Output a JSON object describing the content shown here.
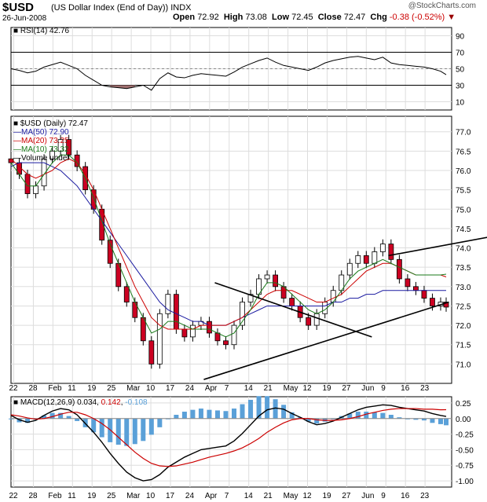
{
  "header": {
    "symbol": "$USD",
    "name": "(US Dollar Index (End of Day))",
    "exchange": "INDX",
    "date": "26-Jun-2008",
    "watermark": "@StockCharts.com",
    "open_label": "Open",
    "open": "72.92",
    "high_label": "High",
    "high": "73.08",
    "low_label": "Low",
    "low": "72.45",
    "close_label": "Close",
    "close": "72.47",
    "chg_label": "Chg",
    "chg": "-0.38 (-0.52%)"
  },
  "colors": {
    "ma50": "#1a1aa0",
    "ma20": "#cc0000",
    "ma10": "#1a7a1a",
    "up": "#ffffff",
    "down": "#cc0022",
    "macd_hist": "#5aa0d8",
    "rsi_fill": "#a07070"
  },
  "x_labels": [
    "22",
    "28",
    "Feb",
    "11",
    "19",
    "25",
    "Mar",
    "10",
    "17",
    "24",
    "Apr",
    "7",
    "14",
    "21",
    "May",
    "12",
    "19",
    "27",
    "Jun",
    "9",
    "16",
    "23"
  ],
  "rsi": {
    "label": "RSI(14) 42.76",
    "ylim": [
      0,
      100
    ],
    "ticks": [
      "90",
      "70",
      "50",
      "30",
      "10"
    ],
    "overbought": 70,
    "oversold": 30
  },
  "main": {
    "legend": [
      {
        "text": "$USD (Daily) 72.47",
        "color": "#000000"
      },
      {
        "text": "MA(50) 72.90",
        "color": "#1a1aa0"
      },
      {
        "text": "MA(20) 73.25",
        "color": "#cc0000"
      },
      {
        "text": "MA(10) 73.32",
        "color": "#1a7a1a"
      },
      {
        "text": "Volume undef",
        "color": "#000000"
      }
    ],
    "ylim": [
      70.5,
      77.4
    ],
    "ticks": [
      "77.0",
      "76.5",
      "76.0",
      "75.5",
      "75.0",
      "74.5",
      "74.0",
      "73.5",
      "73.0",
      "72.5",
      "72.0",
      "71.5",
      "71.0"
    ]
  },
  "macd": {
    "label_prefix": "MACD(12,26,9)",
    "val1": "0.034",
    "val2": "0.142",
    "val3": "-0.108",
    "ylim": [
      -1.1,
      0.35
    ],
    "ticks": [
      "0.25",
      "0.00",
      "-0.25",
      "-0.50",
      "-0.75",
      "-1.00"
    ]
  },
  "chart_data": {
    "type": "line",
    "title": "$USD (US Dollar Index (End of Day))",
    "x": [
      0,
      3,
      6,
      9,
      12,
      15,
      18,
      21,
      24,
      27,
      30,
      33,
      36,
      39,
      42,
      45,
      48,
      51,
      54,
      57,
      60,
      63,
      66,
      69,
      72,
      75,
      78,
      81,
      84,
      87,
      90,
      93,
      96,
      99,
      102,
      105,
      108,
      111,
      114,
      117,
      120,
      123,
      126,
      129,
      132,
      135,
      138,
      141,
      144,
      147,
      150,
      153,
      156,
      158
    ],
    "series": [
      {
        "name": "$USD (Daily)",
        "values": [
          76.2,
          75.9,
          75.4,
          75.6,
          76.3,
          76.5,
          76.8,
          76.4,
          76.1,
          75.5,
          75.0,
          74.2,
          73.6,
          73.0,
          72.6,
          72.2,
          71.6,
          71.0,
          72.3,
          72.8,
          71.9,
          71.7,
          72.0,
          72.1,
          71.8,
          71.6,
          71.5,
          72.0,
          72.6,
          72.8,
          73.2,
          73.3,
          73.0,
          72.7,
          72.5,
          72.2,
          72.0,
          72.3,
          72.6,
          72.9,
          73.3,
          73.6,
          73.8,
          73.6,
          73.9,
          74.1,
          73.7,
          73.2,
          73.0,
          72.9,
          72.7,
          72.5,
          72.6,
          72.47
        ]
      },
      {
        "name": "MA(50)",
        "values": [
          76.1,
          76.2,
          76.2,
          76.2,
          76.2,
          76.1,
          76.0,
          75.8,
          75.6,
          75.3,
          75.0,
          74.7,
          74.4,
          74.1,
          73.8,
          73.5,
          73.2,
          72.9,
          72.6,
          72.4,
          72.3,
          72.2,
          72.1,
          72.1,
          72.0,
          72.0,
          72.0,
          72.1,
          72.2,
          72.3,
          72.4,
          72.5,
          72.5,
          72.5,
          72.5,
          72.5,
          72.5,
          72.5,
          72.5,
          72.6,
          72.6,
          72.7,
          72.7,
          72.8,
          72.8,
          72.9,
          72.9,
          72.9,
          72.9,
          72.9,
          72.9,
          72.9,
          72.9,
          72.9
        ]
      },
      {
        "name": "MA(20)",
        "values": [
          76.3,
          76.1,
          75.9,
          75.8,
          75.9,
          76.0,
          76.2,
          76.3,
          76.2,
          75.9,
          75.5,
          75.0,
          74.5,
          74.0,
          73.5,
          73.0,
          72.6,
          72.2,
          72.0,
          71.9,
          71.9,
          71.9,
          71.9,
          72.0,
          72.0,
          72.0,
          72.0,
          72.1,
          72.2,
          72.4,
          72.6,
          72.8,
          72.9,
          72.9,
          72.9,
          72.8,
          72.7,
          72.6,
          72.6,
          72.7,
          72.8,
          73.0,
          73.2,
          73.4,
          73.5,
          73.6,
          73.6,
          73.5,
          73.4,
          73.3,
          73.3,
          73.3,
          73.3,
          73.25
        ]
      },
      {
        "name": "MA(10)",
        "values": [
          76.2,
          75.9,
          75.6,
          75.6,
          75.9,
          76.2,
          76.4,
          76.4,
          76.2,
          75.8,
          75.3,
          74.7,
          74.1,
          73.6,
          73.1,
          72.6,
          72.2,
          71.8,
          71.9,
          72.1,
          72.1,
          72.0,
          71.9,
          71.9,
          71.9,
          71.8,
          71.7,
          71.8,
          72.1,
          72.4,
          72.8,
          73.1,
          73.1,
          73.0,
          72.8,
          72.6,
          72.4,
          72.3,
          72.4,
          72.6,
          72.9,
          73.2,
          73.4,
          73.5,
          73.6,
          73.7,
          73.6,
          73.5,
          73.4,
          73.3,
          73.3,
          73.3,
          73.3,
          73.32
        ]
      }
    ],
    "rsi_values": [
      50,
      48,
      45,
      47,
      52,
      55,
      58,
      54,
      50,
      42,
      36,
      30,
      28,
      27,
      26,
      28,
      30,
      24,
      38,
      45,
      40,
      39,
      42,
      44,
      43,
      42,
      41,
      46,
      52,
      56,
      60,
      63,
      58,
      54,
      52,
      50,
      48,
      52,
      57,
      60,
      62,
      64,
      65,
      63,
      61,
      64,
      57,
      55,
      54,
      53,
      52,
      50,
      47,
      42.76
    ],
    "macd_line": [
      0.05,
      -0.02,
      -0.06,
      -0.03,
      0.05,
      0.12,
      0.16,
      0.14,
      0.06,
      -0.08,
      -0.22,
      -0.38,
      -0.56,
      -0.72,
      -0.86,
      -0.95,
      -1.0,
      -0.98,
      -0.9,
      -0.78,
      -0.7,
      -0.62,
      -0.56,
      -0.5,
      -0.48,
      -0.46,
      -0.44,
      -0.36,
      -0.24,
      -0.1,
      0.04,
      0.14,
      0.17,
      0.15,
      0.08,
      0.02,
      -0.05,
      -0.1,
      -0.08,
      -0.04,
      0.02,
      0.08,
      0.14,
      0.18,
      0.2,
      0.22,
      0.21,
      0.18,
      0.16,
      0.14,
      0.12,
      0.08,
      0.05,
      0.034
    ],
    "macd_signal": [
      0.06,
      0.04,
      0.01,
      -0.01,
      0.0,
      0.03,
      0.07,
      0.1,
      0.1,
      0.06,
      0.0,
      -0.08,
      -0.18,
      -0.3,
      -0.42,
      -0.54,
      -0.64,
      -0.72,
      -0.76,
      -0.77,
      -0.76,
      -0.73,
      -0.7,
      -0.66,
      -0.62,
      -0.59,
      -0.56,
      -0.52,
      -0.47,
      -0.4,
      -0.32,
      -0.22,
      -0.14,
      -0.07,
      -0.02,
      0.0,
      0.0,
      -0.02,
      -0.03,
      -0.03,
      -0.02,
      0.0,
      0.03,
      0.07,
      0.1,
      0.13,
      0.15,
      0.16,
      0.16,
      0.16,
      0.15,
      0.15,
      0.14,
      0.142
    ],
    "macd_hist": [
      -0.01,
      -0.06,
      -0.07,
      -0.02,
      0.05,
      0.09,
      0.09,
      0.04,
      -0.04,
      -0.14,
      -0.22,
      -0.3,
      -0.38,
      -0.42,
      -0.44,
      -0.41,
      -0.36,
      -0.26,
      -0.14,
      -0.01,
      0.06,
      0.11,
      0.14,
      0.16,
      0.14,
      0.13,
      0.12,
      0.16,
      0.23,
      0.3,
      0.36,
      0.36,
      0.31,
      0.22,
      0.1,
      0.02,
      -0.05,
      -0.08,
      -0.05,
      -0.01,
      0.04,
      0.08,
      0.11,
      0.11,
      0.1,
      0.09,
      0.06,
      0.02,
      0.0,
      -0.02,
      -0.03,
      -0.07,
      -0.09,
      -0.108
    ],
    "trendlines": [
      {
        "x": [
          74,
          131
        ],
        "y": [
          73.1,
          71.7
        ]
      },
      {
        "x": [
          70,
          159
        ],
        "y": [
          70.6,
          72.6
        ]
      },
      {
        "x": [
          137,
          198
        ],
        "y": [
          73.8,
          74.6
        ]
      }
    ]
  }
}
